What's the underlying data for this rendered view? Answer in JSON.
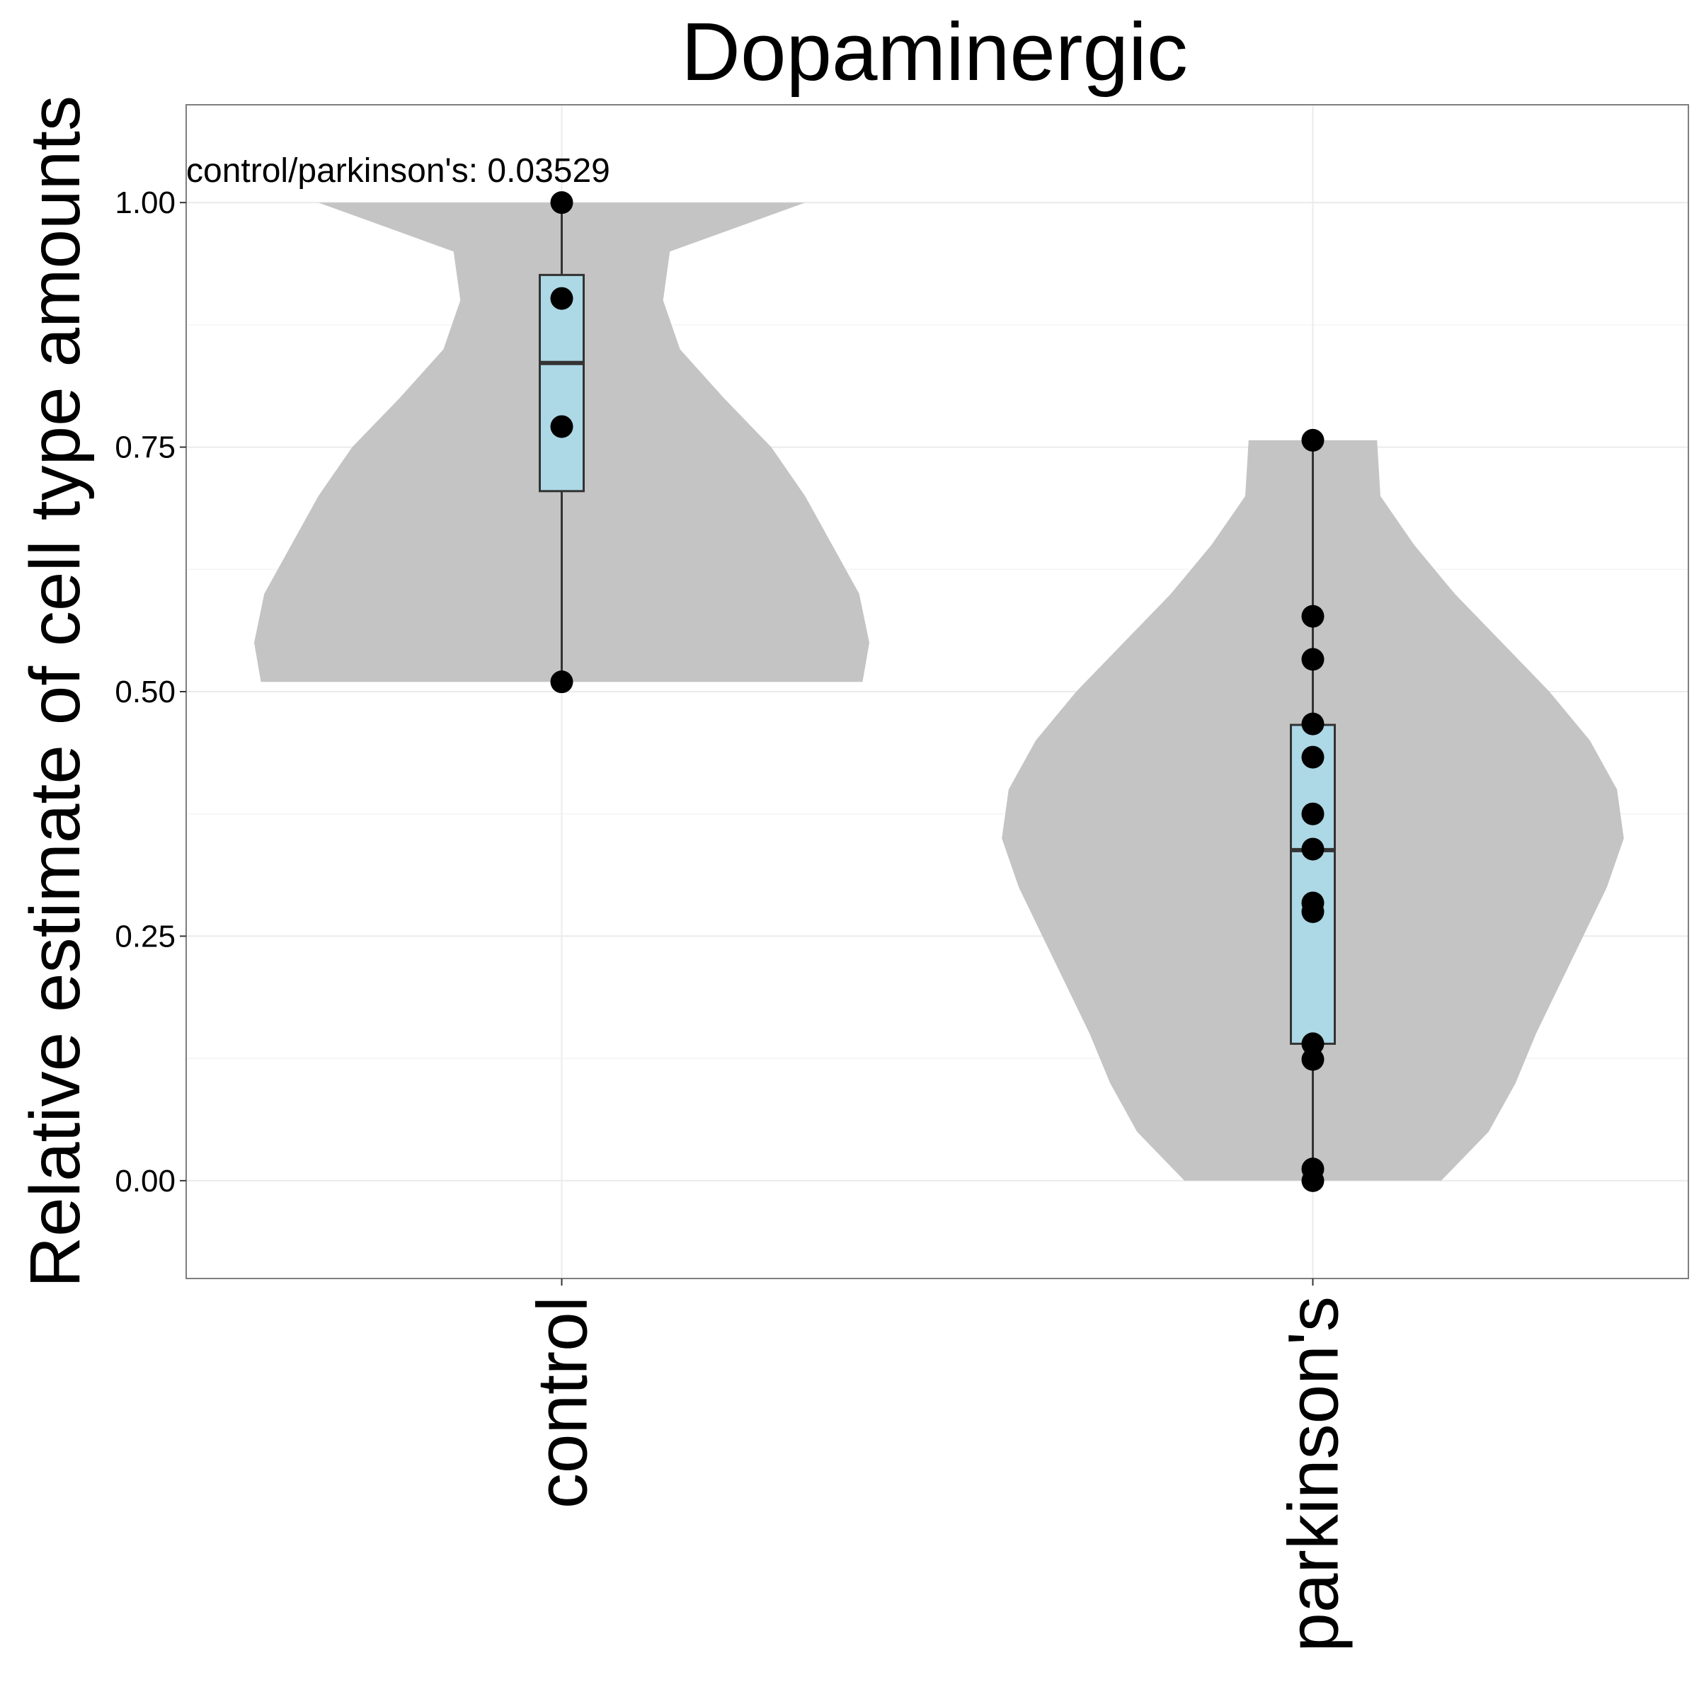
{
  "chart_data": {
    "type": "violin",
    "title": "Dopaminergic",
    "xlabel": "",
    "ylabel": "Relative estimate of cell type amounts",
    "annotation": "control/parkinson's: 0.03529",
    "categories": [
      "control",
      "parkinson's"
    ],
    "ylim": [
      -0.1,
      1.1
    ],
    "yticks": [
      0.0,
      0.25,
      0.5,
      0.75,
      1.0
    ],
    "ytick_labels": [
      "0.00",
      "0.25",
      "0.50",
      "0.75",
      "1.00"
    ],
    "grid": true,
    "groups": [
      {
        "name": "control",
        "points": [
          1.0,
          0.902,
          0.771,
          0.51
        ],
        "box": {
          "min": 0.51,
          "q1": 0.705,
          "median": 0.836,
          "q3": 0.926,
          "max": 1.0
        },
        "density": [
          [
            0.51,
            0.89
          ],
          [
            0.55,
            0.91
          ],
          [
            0.6,
            0.88
          ],
          [
            0.65,
            0.8
          ],
          [
            0.7,
            0.72
          ],
          [
            0.75,
            0.62
          ],
          [
            0.8,
            0.48
          ],
          [
            0.85,
            0.35
          ],
          [
            0.9,
            0.3
          ],
          [
            0.95,
            0.32
          ],
          [
            1.0,
            0.72
          ]
        ]
      },
      {
        "name": "parkinson's",
        "points": [
          0.757,
          0.577,
          0.533,
          0.467,
          0.433,
          0.375,
          0.339,
          0.284,
          0.275,
          0.14,
          0.124,
          0.012,
          0.0
        ],
        "box": {
          "min": 0.0,
          "q1": 0.14,
          "median": 0.338,
          "q3": 0.466,
          "max": 0.757
        },
        "density": [
          [
            0.0,
            0.38
          ],
          [
            0.05,
            0.52
          ],
          [
            0.1,
            0.6
          ],
          [
            0.15,
            0.66
          ],
          [
            0.2,
            0.73
          ],
          [
            0.25,
            0.8
          ],
          [
            0.3,
            0.87
          ],
          [
            0.35,
            0.92
          ],
          [
            0.4,
            0.9
          ],
          [
            0.45,
            0.82
          ],
          [
            0.5,
            0.7
          ],
          [
            0.55,
            0.56
          ],
          [
            0.6,
            0.42
          ],
          [
            0.65,
            0.3
          ],
          [
            0.7,
            0.2
          ],
          [
            0.757,
            0.19
          ]
        ]
      }
    ],
    "colors": {
      "violin": "#c4c4c4",
      "box": "#add8e6",
      "box_stroke": "#333333",
      "point": "#000000"
    }
  }
}
